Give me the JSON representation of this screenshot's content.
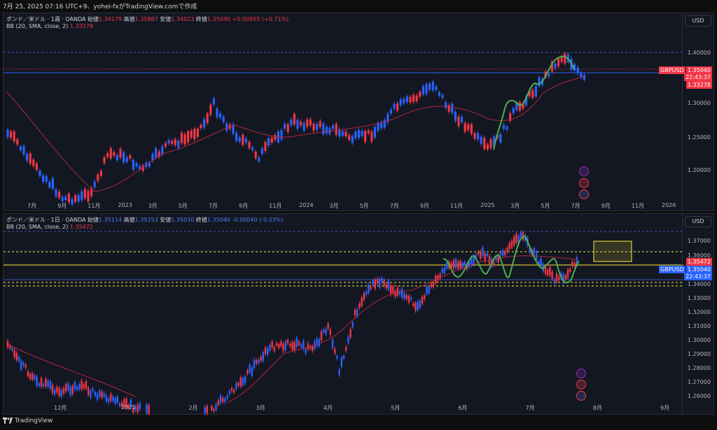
{
  "header": {
    "text": "7月 25, 2025 07:16 UTC+9、yohei-fxがTradingView.comで作成"
  },
  "footer": {
    "brand": "TradingView"
  },
  "pane1": {
    "symbol": "ポンド／米ドル · 1週 · OANDA",
    "o_label": "始値",
    "o": "1.34179",
    "h_label": "高値",
    "h": "1.35887",
    "l_label": "安値",
    "l": "1.34023",
    "c_label": "終値",
    "c": "1.35040",
    "chg": "+0.00955 (+0.71%)",
    "bb_label": "BB (20, SMA, close, 2)",
    "bb_value": "1.33278",
    "currency": "USD",
    "price_ticks": [
      "1.40000",
      "1.30000",
      "1.25000",
      "1.20000"
    ],
    "ticker_tag": "GBPUSD",
    "last_price": "1.35040",
    "countdown": "22:43:37",
    "bb_tag": "1.33278",
    "time_labels": [
      "7月",
      "9月",
      "11月",
      "2023",
      "3月",
      "5月",
      "7月",
      "9月",
      "11月",
      "2024",
      "3月",
      "5月",
      "7月",
      "9月",
      "11月",
      "2025",
      "3月",
      "5月",
      "7月",
      "9月",
      "11月",
      "2026"
    ]
  },
  "pane2": {
    "symbol": "ポンド／米ドル · 1日 · OANDA",
    "o_label": "始値",
    "o": "1.35114",
    "h_label": "高値",
    "h": "1.35153",
    "l_label": "安値",
    "l": "1.35030",
    "c_label": "終値",
    "c": "1.35040",
    "chg": "-0.00040 (-0.03%)",
    "bb_label": "BB (20, SMA, close, 2)",
    "bb_value": "1.35472",
    "currency": "USD",
    "price_ticks": [
      "1.37000",
      "1.36000",
      "1.34000",
      "1.33000",
      "1.32000",
      "1.31000",
      "1.30000",
      "1.29000",
      "1.28000",
      "1.27000",
      "1.26000"
    ],
    "ticker_tag": "GBPUSD",
    "last_price": "1.35040",
    "countdown": "22:43:37",
    "bb_tag": "1.35472",
    "time_labels": [
      "12月",
      "2025",
      "2月",
      "3月",
      "4月",
      "5月",
      "6月",
      "7月",
      "8月",
      "9月"
    ]
  },
  "colors": {
    "up": "#f23645",
    "down": "#2962ff",
    "bb": "#b2263a",
    "wave": "#4caf50",
    "zone": "#ffeb3b"
  }
}
